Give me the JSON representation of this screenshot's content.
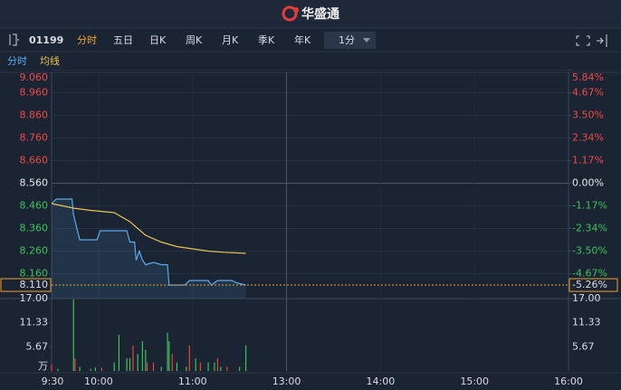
{
  "brand": "华盛通",
  "toolbar": {
    "code": "01199",
    "tabs": [
      "分时",
      "五日",
      "日K",
      "周K",
      "月K",
      "季K",
      "年K"
    ],
    "active_tab": 0,
    "interval": "1分"
  },
  "chart_data": [
    {
      "type": "line",
      "prev_close": 8.56,
      "xlim": [
        0,
        330
      ],
      "xticks": [
        {
          "value": 0,
          "label": "9:30"
        },
        {
          "value": 30,
          "label": "10:00"
        },
        {
          "value": 90,
          "label": "11:00"
        },
        {
          "value": 150,
          "label": "13:00"
        },
        {
          "value": 210,
          "label": "14:00"
        },
        {
          "value": 270,
          "label": "15:00"
        },
        {
          "value": 330,
          "label": "16:00"
        }
      ],
      "ylim": [
        8.05,
        9.06
      ],
      "yticks": [
        {
          "value": 9.06,
          "label": "9.060"
        },
        {
          "value": 8.96,
          "label": "8.960"
        },
        {
          "value": 8.86,
          "label": "8.860"
        },
        {
          "value": 8.76,
          "label": "8.760"
        },
        {
          "value": 8.66,
          "label": "8.660"
        },
        {
          "value": 8.56,
          "label": "8.560"
        },
        {
          "value": 8.46,
          "label": "8.460"
        },
        {
          "value": 8.36,
          "label": "8.360"
        },
        {
          "value": 8.26,
          "label": "8.260"
        },
        {
          "value": 8.16,
          "label": "8.160"
        }
      ],
      "y2lim": [
        -5.96,
        5.84
      ],
      "y2ticks": [
        {
          "value": 5.84,
          "label": "5.84%"
        },
        {
          "value": 4.67,
          "label": "4.67%"
        },
        {
          "value": 3.5,
          "label": "3.50%"
        },
        {
          "value": 2.34,
          "label": "2.34%"
        },
        {
          "value": 1.17,
          "label": "1.17%"
        },
        {
          "value": 0,
          "label": "0.00%"
        },
        {
          "value": -1.17,
          "label": "-1.17%"
        },
        {
          "value": -2.34,
          "label": "-2.34%"
        },
        {
          "value": -3.5,
          "label": "-3.50%"
        },
        {
          "value": -4.67,
          "label": "-4.67%"
        }
      ],
      "last_price": {
        "value": 8.11,
        "label": "8.110"
      },
      "last_change": {
        "value": -5.26,
        "label": "-5.26%"
      },
      "series": [
        {
          "name": "分时",
          "color": "#5aa9ee",
          "x": [
            0,
            3,
            13,
            14,
            18,
            29,
            31,
            48,
            50,
            53,
            54,
            56,
            58,
            60,
            65,
            70,
            74,
            75,
            85,
            88,
            100,
            102,
            106,
            115,
            118,
            124
          ],
          "values": [
            8.47,
            8.49,
            8.49,
            8.42,
            8.31,
            8.31,
            8.35,
            8.35,
            8.3,
            8.3,
            8.22,
            8.26,
            8.22,
            8.2,
            8.21,
            8.2,
            8.2,
            8.11,
            8.11,
            8.13,
            8.13,
            8.11,
            8.13,
            8.13,
            8.12,
            8.11
          ]
        },
        {
          "name": "均线",
          "color": "#e9c255",
          "x": [
            0,
            14,
            25,
            40,
            50,
            60,
            70,
            80,
            90,
            100,
            110,
            124
          ],
          "values": [
            8.47,
            8.45,
            8.44,
            8.43,
            8.39,
            8.33,
            8.3,
            8.28,
            8.27,
            8.26,
            8.255,
            8.25
          ]
        }
      ]
    },
    {
      "type": "bar",
      "unit": "万",
      "xlim": [
        0,
        330
      ],
      "ylim": [
        0,
        17
      ],
      "yticks": [
        {
          "value": 17,
          "label": "17.00"
        },
        {
          "value": 11.33,
          "label": "11.33"
        },
        {
          "value": 5.67,
          "label": "5.67"
        }
      ],
      "series": [
        {
          "color": "#e8433f",
          "x": [
            0,
            15,
            32,
            52,
            61,
            65,
            77,
            88,
            95,
            106,
            112
          ],
          "values": [
            1.5,
            3,
            0.8,
            6,
            2,
            2,
            4,
            6,
            2,
            3,
            1
          ]
        },
        {
          "color": "#3cc25a",
          "x": [
            4,
            14,
            18,
            25,
            28,
            40,
            43,
            48,
            50,
            55,
            58,
            60,
            70,
            74,
            75,
            80,
            86,
            92,
            100,
            104,
            108,
            120,
            124
          ],
          "values": [
            0.5,
            16.8,
            1,
            0.5,
            0.8,
            2,
            8.5,
            3,
            3,
            4,
            7,
            5,
            1,
            9,
            7,
            2,
            1,
            3,
            2,
            2,
            1,
            1,
            6
          ]
        }
      ]
    }
  ]
}
